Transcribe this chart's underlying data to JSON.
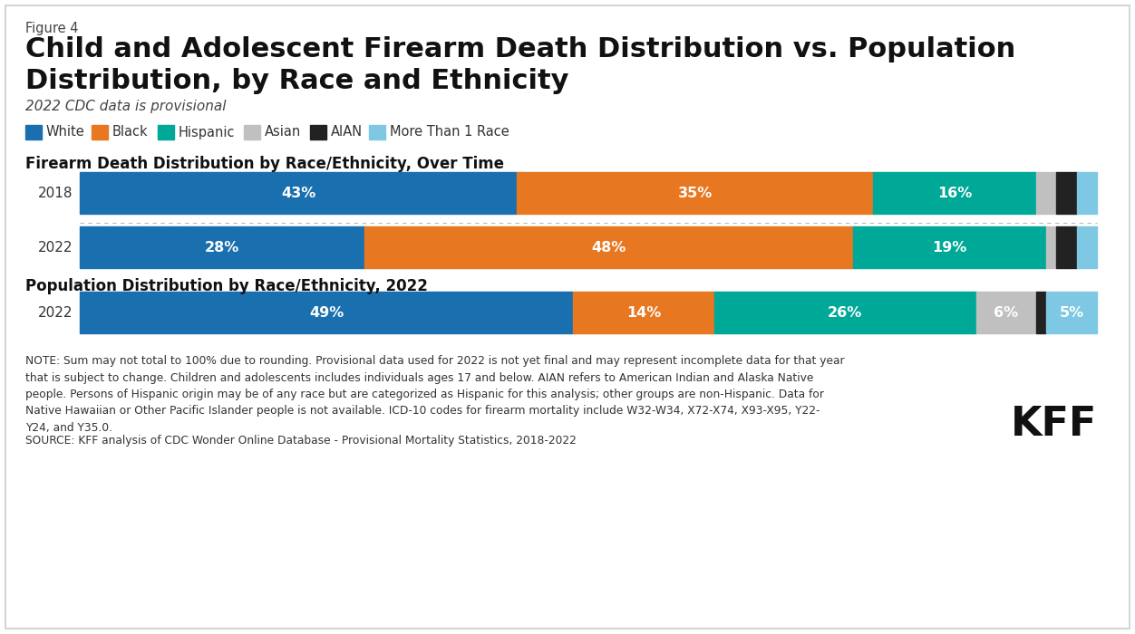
{
  "figure_label": "Figure 4",
  "title": "Child and Adolescent Firearm Death Distribution vs. Population\nDistribution, by Race and Ethnicity",
  "subtitle": "2022 CDC data is provisional",
  "section1_title": "Firearm Death Distribution by Race/Ethnicity, Over Time",
  "section2_title": "Population Distribution by Race/Ethnicity, 2022",
  "categories": [
    "White",
    "Black",
    "Hispanic",
    "Asian",
    "AIAN",
    "More Than 1 Race"
  ],
  "colors": [
    "#1a6faf",
    "#e87722",
    "#00a897",
    "#c0c0c0",
    "#222222",
    "#7ec8e3"
  ],
  "bars": {
    "firearm_2018": [
      43,
      35,
      16,
      2,
      2,
      2
    ],
    "firearm_2022": [
      28,
      48,
      19,
      1,
      2,
      2
    ],
    "population_2022": [
      49,
      14,
      26,
      6,
      1,
      5
    ]
  },
  "bar_labels": {
    "firearm_2018": [
      "43%",
      "35%",
      "16%",
      "",
      "",
      ""
    ],
    "firearm_2022": [
      "28%",
      "48%",
      "19%",
      "",
      "",
      ""
    ],
    "population_2022": [
      "49%",
      "14%",
      "26%",
      "6%",
      "",
      "5%"
    ]
  },
  "row_labels": {
    "firearm_2018": "2018",
    "firearm_2022": "2022",
    "population_2022": "2022"
  },
  "note_text": "NOTE: Sum may not total to 100% due to rounding. Provisional data used for 2022 is not yet final and may represent incomplete data for that year\nthat is subject to change. Children and adolescents includes individuals ages 17 and below. AIAN refers to American Indian and Alaska Native\npeople. Persons of Hispanic origin may be of any race but are categorized as Hispanic for this analysis; other groups are non-Hispanic. Data for\nNative Hawaiian or Other Pacific Islander people is not available. ICD-10 codes for firearm mortality include W32-W34, X72-X74, X93-X95, Y22-\nY24, and Y35.0.",
  "source_text": "SOURCE: KFF analysis of CDC Wonder Online Database - Provisional Mortality Statistics, 2018-2022",
  "kff_text": "KFF"
}
